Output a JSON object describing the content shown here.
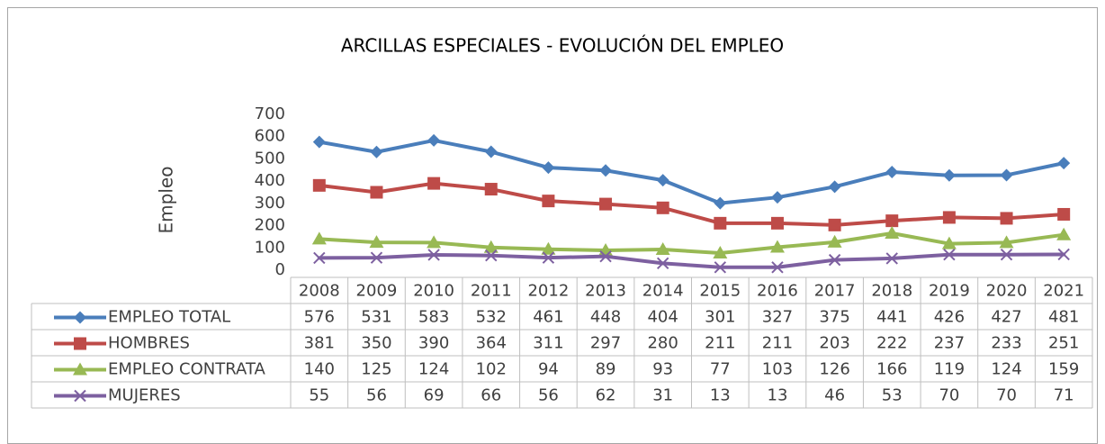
{
  "chart_data": {
    "type": "line",
    "title": "ARCILLAS ESPECIALES - EVOLUCIÓN DEL EMPLEO",
    "y_label": "Empleo",
    "categories": [
      "2008",
      "2009",
      "2010",
      "2011",
      "2012",
      "2013",
      "2014",
      "2015",
      "2016",
      "2017",
      "2018",
      "2019",
      "2020",
      "2021"
    ],
    "series": [
      {
        "name": "EMPLEO TOTAL",
        "color": "#4a7ebb",
        "marker": "diamond",
        "values": [
          576,
          531,
          583,
          532,
          461,
          448,
          404,
          301,
          327,
          375,
          441,
          426,
          427,
          481
        ]
      },
      {
        "name": "HOMBRES",
        "color": "#be4b48",
        "marker": "square",
        "values": [
          381,
          350,
          390,
          364,
          311,
          297,
          280,
          211,
          211,
          203,
          222,
          237,
          233,
          251
        ]
      },
      {
        "name": "EMPLEO CONTRATA",
        "color": "#98b954",
        "marker": "triangle",
        "values": [
          140,
          125,
          124,
          102,
          94,
          89,
          93,
          77,
          103,
          126,
          166,
          119,
          124,
          159
        ]
      },
      {
        "name": "MUJERES",
        "color": "#7d60a0",
        "marker": "x",
        "values": [
          55,
          56,
          69,
          66,
          56,
          62,
          31,
          13,
          13,
          46,
          53,
          70,
          70,
          71
        ]
      }
    ],
    "ylim": [
      0,
      700
    ],
    "yticks": [
      0,
      100,
      200,
      300,
      400,
      500,
      600,
      700
    ]
  }
}
